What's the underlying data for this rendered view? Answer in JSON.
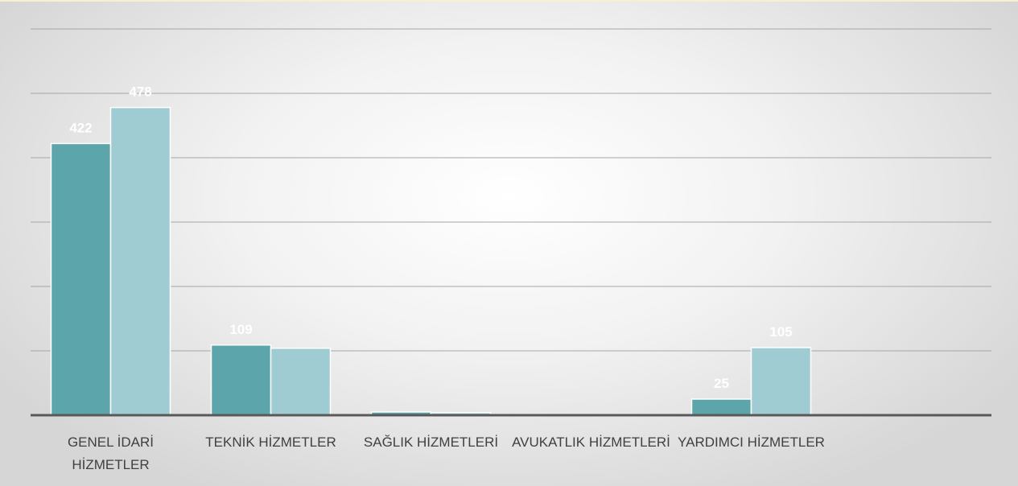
{
  "chart_data": {
    "type": "bar",
    "categories": [
      "GENEL İDARİ HİZMETLER",
      "TEKNİK HİZMETLER",
      "SAĞLIK HİZMETLERİ",
      "AVUKATLIK HİZMETLERİ",
      "YARDIMCI HİZMETLER",
      null
    ],
    "series": [
      {
        "color": "#5ba5ab",
        "values": [
          422,
          109,
          5,
          1,
          25,
          null
        ],
        "value_labels": [
          "422",
          "109",
          null,
          null,
          "25",
          null
        ]
      },
      {
        "color": "#9fccd2",
        "values": [
          478,
          104,
          4,
          1,
          105,
          null
        ],
        "value_labels": [
          "478",
          null,
          null,
          null,
          "105",
          null
        ]
      }
    ],
    "ylim": [
      0,
      600
    ],
    "yticks": [
      0,
      100,
      200,
      300,
      400,
      500,
      600
    ],
    "grid": true
  }
}
